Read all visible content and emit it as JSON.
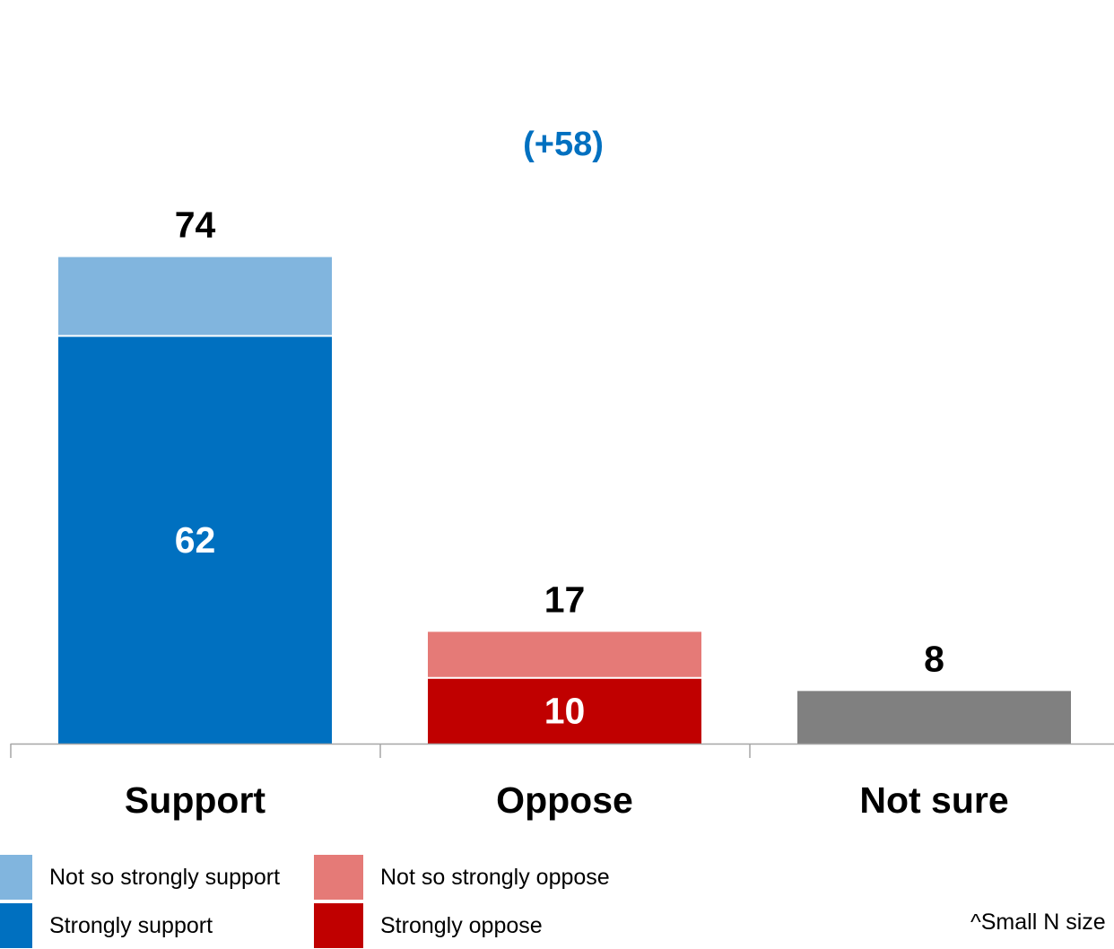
{
  "chart_data": {
    "type": "bar",
    "stacked": true,
    "categories": [
      "Support",
      "Oppose",
      "Not sure"
    ],
    "totals": [
      74,
      17,
      8
    ],
    "segments": [
      {
        "category": "Support",
        "strong": 62,
        "not_so_strong": 12,
        "strong_color": "#0070C0",
        "soft_color": "#81B5DE"
      },
      {
        "category": "Oppose",
        "strong": 10,
        "not_so_strong": 7,
        "strong_color": "#C00000",
        "soft_color": "#E57A77"
      },
      {
        "category": "Not sure",
        "value": 8,
        "color": "#808080"
      }
    ],
    "strong_labels": [
      "62",
      "10"
    ],
    "total_labels": [
      "74",
      "17",
      "8"
    ],
    "net_label": "(+58)",
    "net_color": "#0070C0",
    "ylim": [
      0,
      100
    ],
    "grid": false
  },
  "legend": {
    "items": [
      {
        "label": "Not so strongly support",
        "color": "#81B5DE"
      },
      {
        "label": "Strongly support",
        "color": "#0070C0"
      },
      {
        "label": "Not so strongly oppose",
        "color": "#E57A77"
      },
      {
        "label": "Strongly oppose",
        "color": "#C00000"
      }
    ]
  },
  "footnote": "^Small N size"
}
